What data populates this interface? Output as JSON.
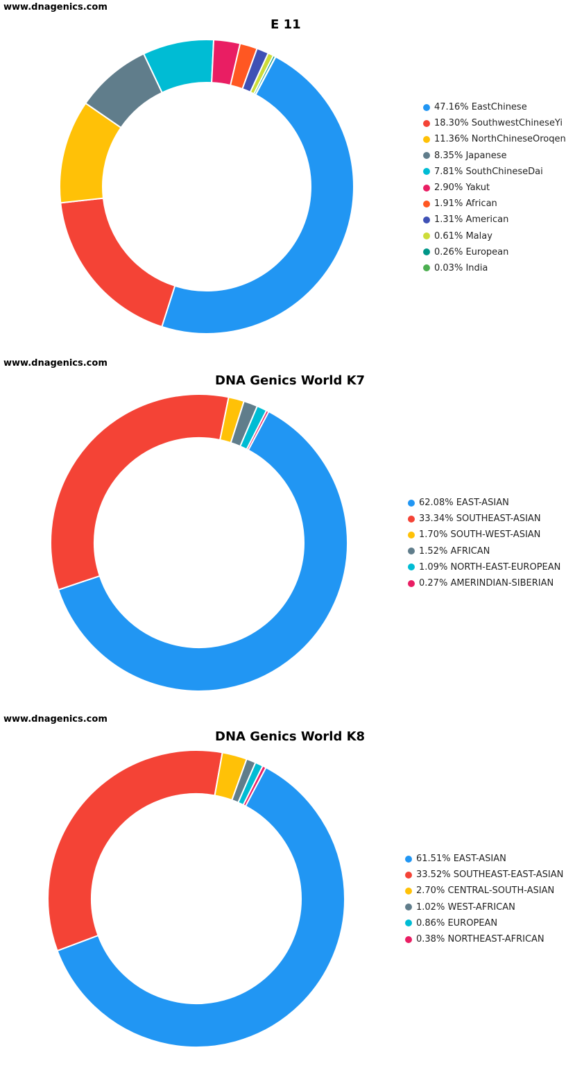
{
  "watermark": "www.dnagenics.com",
  "chart_data": [
    {
      "type": "pie",
      "title": "E 11",
      "legend_position": "right",
      "donut": true,
      "categories": [
        "EastChinese",
        "SouthwestChineseYi",
        "NorthChineseOroqen",
        "Japanese",
        "SouthChineseDai",
        "Yakut",
        "African",
        "American",
        "Malay",
        "European",
        "India"
      ],
      "values": [
        47.16,
        18.3,
        11.36,
        8.35,
        7.81,
        2.9,
        1.91,
        1.31,
        0.61,
        0.26,
        0.03
      ],
      "labels": [
        "47.16",
        "18.30",
        "11.36",
        "8.35",
        "7.81",
        "2.90",
        "1.91",
        "1.31",
        "0.61",
        "0.26",
        "0.03"
      ],
      "colors": [
        "#2196f3",
        "#f44336",
        "#ffc107",
        "#607d8b",
        "#00bcd4",
        "#e91e63",
        "#ff5722",
        "#3f51b5",
        "#cddc39",
        "#009688",
        "#4caf50"
      ]
    },
    {
      "type": "pie",
      "title": "DNA Genics World K7",
      "legend_position": "right",
      "donut": true,
      "categories": [
        "EAST-ASIAN",
        "SOUTHEAST-ASIAN",
        "SOUTH-WEST-ASIAN",
        "AFRICAN",
        "NORTH-EAST-EUROPEAN",
        "AMERINDIAN-SIBERIAN"
      ],
      "values": [
        62.08,
        33.34,
        1.7,
        1.52,
        1.09,
        0.27
      ],
      "labels": [
        "62.08",
        "33.34",
        "1.70",
        "1.52",
        "1.09",
        "0.27"
      ],
      "colors": [
        "#2196f3",
        "#f44336",
        "#ffc107",
        "#607d8b",
        "#00bcd4",
        "#e91e63"
      ]
    },
    {
      "type": "pie",
      "title": "DNA Genics World K8",
      "legend_position": "right",
      "donut": true,
      "categories": [
        "EAST-ASIAN",
        "SOUTHEAST-EAST-ASIAN",
        "CENTRAL-SOUTH-ASIAN",
        "WEST-AFRICAN",
        "EUROPEAN",
        "NORTHEAST-AFRICAN"
      ],
      "values": [
        61.51,
        33.52,
        2.7,
        1.02,
        0.86,
        0.38
      ],
      "labels": [
        "61.51",
        "33.52",
        "2.70",
        "1.02",
        "0.86",
        "0.38"
      ],
      "colors": [
        "#2196f3",
        "#f44336",
        "#ffc107",
        "#607d8b",
        "#00bcd4",
        "#e91e63"
      ]
    }
  ]
}
